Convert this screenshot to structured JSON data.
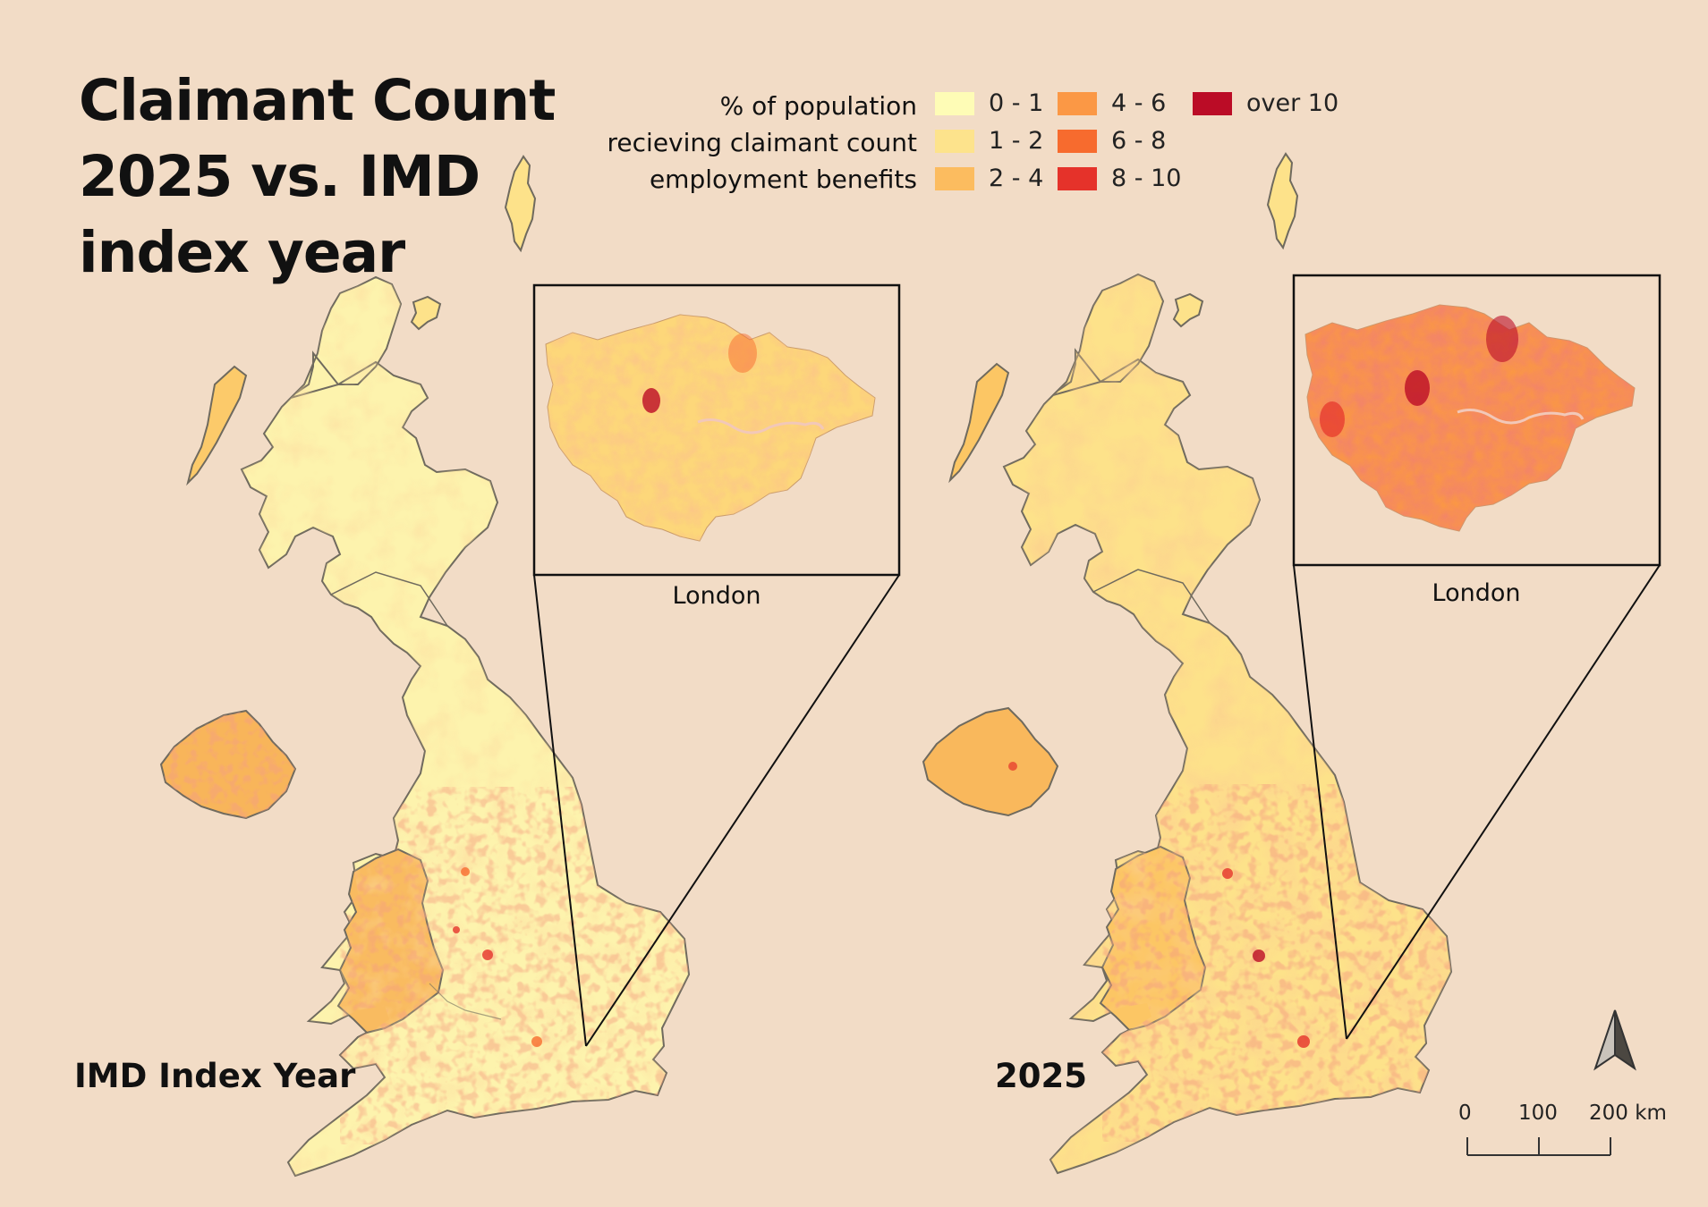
{
  "title": {
    "line1": "Claimant Count",
    "line2": "2025 vs. IMD",
    "line3": "index year"
  },
  "legend": {
    "title_lines": [
      "%  of population",
      "recieving claimant count",
      "employment benefits"
    ],
    "items": [
      {
        "label": "0 - 1",
        "color": "#fefcb6"
      },
      {
        "label": "1 - 2",
        "color": "#fde38c"
      },
      {
        "label": "2 - 4",
        "color": "#fcbc5f"
      },
      {
        "label": "4 - 6",
        "color": "#fb9845"
      },
      {
        "label": "6 - 8",
        "color": "#f76b2e"
      },
      {
        "label": "8 - 10",
        "color": "#e5322a"
      },
      {
        "label": "over 10",
        "color": "#bb0c26"
      }
    ]
  },
  "maps": {
    "left": {
      "label": "IMD Index Year",
      "inset_caption": "London"
    },
    "right": {
      "label": "2025",
      "inset_caption": "London"
    }
  },
  "scale_bar": {
    "ticks": [
      "0",
      "100",
      "200 km"
    ]
  },
  "north_arrow": {
    "icon": "north-arrow-icon"
  }
}
